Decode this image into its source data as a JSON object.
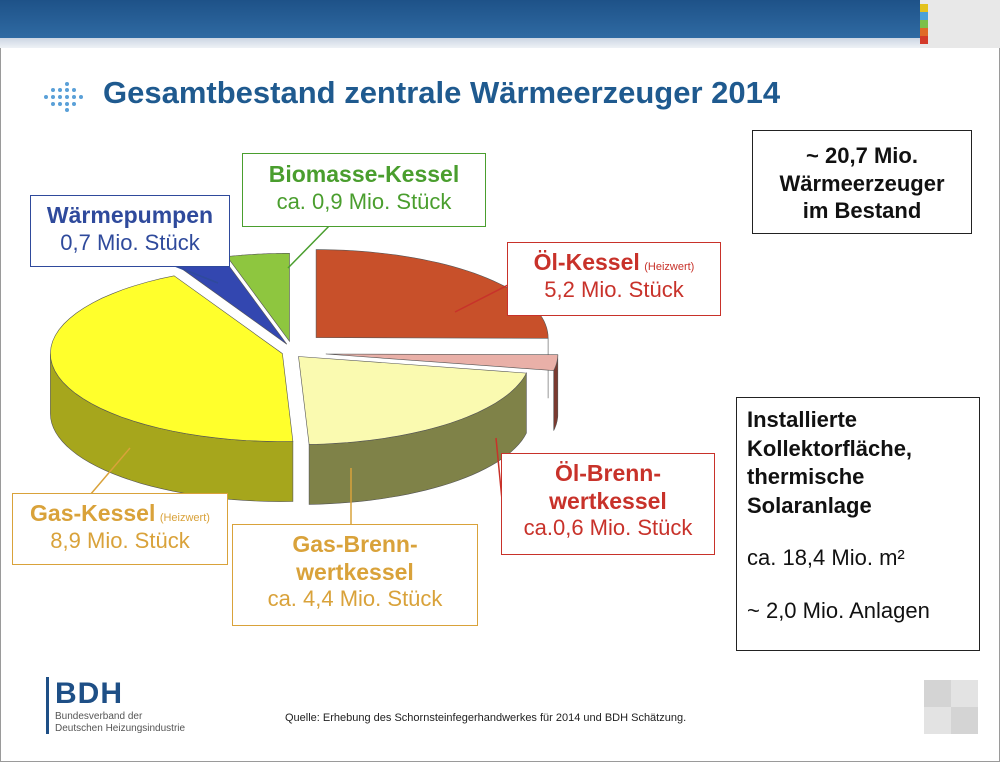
{
  "slide": {
    "title": "Gesamtbestand zentrale Wärmeerzeuger 2014",
    "source": "Quelle: Erhebung des Schornsteinfegerhandwerkes für 2014 und BDH Schätzung."
  },
  "logo": {
    "name": "BDH",
    "line1": "Bundesverband der",
    "line2": "Deutschen Heizungsindustrie"
  },
  "total_box": {
    "line1": "~ 20,7 Mio.",
    "line2": "Wärmeerzeuger",
    "line3": "im Bestand"
  },
  "solar_box": {
    "line1": "Installierte",
    "line2": "Kollektorfläche,",
    "line3": "thermische",
    "line4": "Solaranlage",
    "area": "ca. 18,4 Mio. m²",
    "count": "~ 2,0 Mio. Anlagen"
  },
  "labels": {
    "biomasse": {
      "name": "Biomasse-Kessel",
      "value": "ca. 0,9 Mio. Stück"
    },
    "waermepumpen": {
      "name": "Wärmepumpen",
      "value": "0,7 Mio. Stück"
    },
    "oel": {
      "name": "Öl-Kessel",
      "note": "(Heizwert)",
      "value": "5,2 Mio. Stück"
    },
    "oel_brenn": {
      "name1": "Öl-Brenn-",
      "name2": "wertkessel",
      "value": "ca.0,6 Mio. Stück"
    },
    "gas": {
      "name": "Gas-Kessel",
      "note": "(Heizwert)",
      "value": "8,9 Mio. Stück"
    },
    "gas_brenn": {
      "name1": "Gas-Brenn-",
      "name2": "wertkessel",
      "value": "ca. 4,4 Mio. Stück"
    }
  },
  "colors": {
    "title": "#1f5a8f",
    "biomasse": "#4a9e2e",
    "waermepumpen": "#2f4a9c",
    "oel": "#c8322a",
    "gas": "#d9a23a"
  },
  "chart_data": {
    "type": "pie",
    "unit": "Mio. Stück",
    "slices": [
      {
        "label": "Öl-Kessel (Heizwert)",
        "value": 5.2,
        "color": "#c8502a",
        "side": "#a8190f"
      },
      {
        "label": "Öl-Brennwertkessel",
        "value": 0.6,
        "color": "#e9b0a8",
        "side": "#7a3a30"
      },
      {
        "label": "Gas-Brennwertkessel",
        "value": 4.4,
        "color": "#fafab0",
        "side": "#7f8248"
      },
      {
        "label": "Gas-Kessel (Heizwert)",
        "value": 8.9,
        "color": "#ffff2c",
        "side": "#a6a61c"
      },
      {
        "label": "Wärmepumpen",
        "value": 0.7,
        "color": "#3347b0",
        "side": "#1d2a78"
      },
      {
        "label": "Biomasse-Kessel",
        "value": 0.9,
        "color": "#8ec63f",
        "side": "#5a8a20"
      }
    ]
  }
}
